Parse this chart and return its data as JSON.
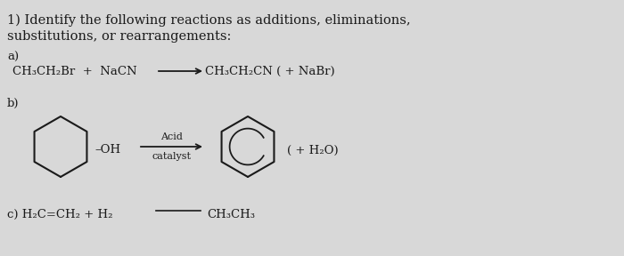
{
  "bg_color": "#d8d8d8",
  "title_line1": "1) Identify the following reactions as additions, eliminations,",
  "title_line2": "substitutions, or rearrangements:",
  "label_a": "a)",
  "rxn_a_left": "CH₃CH₂Br  +  NaCN",
  "rxn_a_right": "CH₃CH₂CN ( + NaBr)",
  "label_b": "b)",
  "oh_label": "–OH",
  "acid_label": "Acid",
  "catalyst_label": "catalyst",
  "water_label": "( + H₂O)",
  "label_c": "c) H₂C=CH₂ + H₂",
  "product_c": "CH₃CH₃",
  "text_color": "#1a1a1a",
  "ring_color": "#1a1a1a",
  "arrow_color": "#1a1a1a",
  "font_size_title": 10.5,
  "font_size_body": 9.5,
  "font_size_small": 8.0
}
